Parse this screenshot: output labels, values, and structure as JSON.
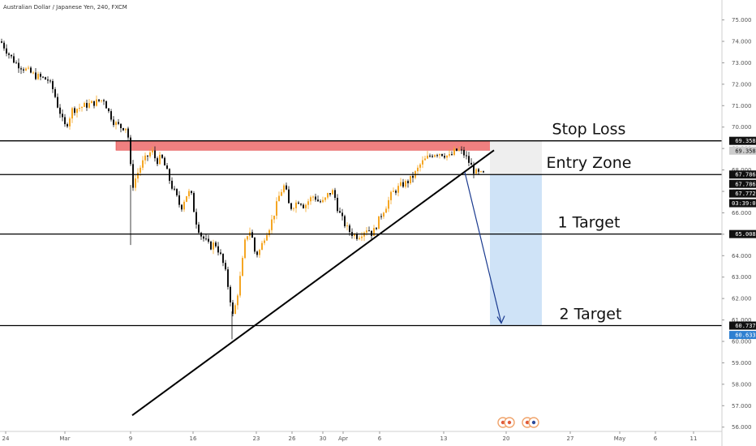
{
  "header": {
    "symbol_title": "Australian Dollar / Japanese Yen, 240, FXCM"
  },
  "colors": {
    "bull": "#f5a623",
    "bear": "#111111",
    "stop_zone": "#f08080",
    "stop_zone_border": "#e03b3b",
    "target_zone": "#cfe3f7",
    "risk_zone": "#eeeeee",
    "arrow": "#1a3a8f",
    "tag_dark": "#111111",
    "tag_blue": "#2f80d1",
    "tag_gray": "#cccccc"
  },
  "chart_data": {
    "type": "candlestick",
    "ylim": [
      55.8,
      75.4
    ],
    "yticks": [
      "75.000",
      "74.000",
      "73.000",
      "72.000",
      "71.000",
      "70.000",
      "69.000",
      "68.000",
      "67.000",
      "66.000",
      "65.000",
      "64.000",
      "63.000",
      "62.000",
      "61.000",
      "60.000",
      "59.000",
      "58.000",
      "57.000",
      "56.000"
    ],
    "xticks": [
      "24",
      "Mar",
      "9",
      "16",
      "23",
      "26",
      "30",
      "Apr",
      "6",
      "13",
      "20",
      "27",
      "May",
      "6",
      "11"
    ],
    "levels": [
      {
        "label": "Stop Loss",
        "price": 69.358
      },
      {
        "label": "Entry Zone",
        "price": 67.786
      },
      {
        "label": "1 Target",
        "price": 65.008
      },
      {
        "label": "2 Target",
        "price": 60.737
      }
    ],
    "price_tags": [
      {
        "text": "69.358",
        "price": 69.358,
        "style": "dark"
      },
      {
        "text": "69.358",
        "price": 68.9,
        "style": "gray"
      },
      {
        "text": "67.786",
        "price": 67.786,
        "style": "dark"
      },
      {
        "text": "67.786",
        "price": 67.35,
        "style": "dark"
      },
      {
        "text": "67.772",
        "price": 66.9,
        "style": "dark"
      },
      {
        "text": "03:39:08",
        "price": 66.45,
        "style": "dark"
      },
      {
        "text": "65.008",
        "price": 65.008,
        "style": "dark"
      },
      {
        "text": "60.737",
        "price": 60.737,
        "style": "dark"
      },
      {
        "text": "60.633",
        "price": 60.3,
        "style": "blue"
      }
    ],
    "stop_zone": {
      "top": 69.358,
      "bottom": 68.92
    },
    "trendline": {
      "from": 56.55,
      "to": 68.92
    },
    "path": [
      [
        0,
        74.0
      ],
      [
        10,
        73.4
      ],
      [
        18,
        73.0
      ],
      [
        26,
        72.8
      ],
      [
        34,
        72.6
      ],
      [
        42,
        72.4
      ],
      [
        50,
        72.3
      ],
      [
        58,
        72.2
      ],
      [
        65,
        71.7
      ],
      [
        70,
        71.0
      ],
      [
        74,
        70.6
      ],
      [
        78,
        70.0
      ],
      [
        82,
        70.2
      ],
      [
        88,
        70.8
      ],
      [
        96,
        70.9
      ],
      [
        104,
        71.0
      ],
      [
        112,
        71.1
      ],
      [
        120,
        71.2
      ],
      [
        127,
        71.3
      ],
      [
        133,
        70.7
      ],
      [
        140,
        70.2
      ],
      [
        148,
        70.0
      ],
      [
        156,
        70.0
      ],
      [
        162,
        67.2
      ],
      [
        168,
        67.8
      ],
      [
        174,
        68.3
      ],
      [
        180,
        68.6
      ],
      [
        186,
        68.9
      ],
      [
        192,
        68.4
      ],
      [
        198,
        68.6
      ],
      [
        204,
        68.0
      ],
      [
        210,
        67.3
      ],
      [
        216,
        66.8
      ],
      [
        222,
        66.2
      ],
      [
        228,
        66.8
      ],
      [
        234,
        67.0
      ],
      [
        240,
        65.7
      ],
      [
        246,
        65.0
      ],
      [
        252,
        64.7
      ],
      [
        258,
        64.4
      ],
      [
        264,
        64.6
      ],
      [
        270,
        64.1
      ],
      [
        276,
        63.4
      ],
      [
        282,
        62.2
      ],
      [
        286,
        61.2
      ],
      [
        290,
        61.8
      ],
      [
        296,
        63.2
      ],
      [
        302,
        64.9
      ],
      [
        308,
        65.2
      ],
      [
        314,
        64.0
      ],
      [
        320,
        64.3
      ],
      [
        326,
        65.0
      ],
      [
        332,
        65.4
      ],
      [
        338,
        66.1
      ],
      [
        344,
        66.9
      ],
      [
        350,
        67.3
      ],
      [
        356,
        66.2
      ],
      [
        362,
        66.4
      ],
      [
        368,
        66.6
      ],
      [
        374,
        66.3
      ],
      [
        380,
        66.6
      ],
      [
        386,
        66.8
      ],
      [
        392,
        66.5
      ],
      [
        398,
        66.5
      ],
      [
        404,
        66.9
      ],
      [
        410,
        67.0
      ],
      [
        416,
        66.1
      ],
      [
        422,
        65.6
      ],
      [
        428,
        65.2
      ],
      [
        434,
        65.0
      ],
      [
        440,
        64.9
      ],
      [
        446,
        65.1
      ],
      [
        452,
        65.3
      ],
      [
        458,
        65.0
      ],
      [
        464,
        65.5
      ],
      [
        470,
        66.0
      ],
      [
        476,
        66.4
      ],
      [
        482,
        66.9
      ],
      [
        488,
        67.1
      ],
      [
        494,
        67.3
      ],
      [
        500,
        67.4
      ],
      [
        506,
        67.6
      ],
      [
        512,
        67.9
      ],
      [
        518,
        68.3
      ],
      [
        524,
        68.5
      ],
      [
        530,
        68.7
      ],
      [
        536,
        68.8
      ],
      [
        542,
        68.8
      ],
      [
        548,
        68.7
      ],
      [
        554,
        68.6
      ],
      [
        560,
        68.9
      ],
      [
        566,
        68.9
      ],
      [
        572,
        68.7
      ],
      [
        578,
        68.3
      ],
      [
        584,
        67.9
      ],
      [
        590,
        67.8
      ],
      [
        596,
        67.78
      ]
    ],
    "event_icons": [
      {
        "name": "flag-event-1",
        "x": 620
      },
      {
        "name": "flag-event-2",
        "x": 628
      },
      {
        "name": "flag-event-3",
        "x": 650
      },
      {
        "name": "au-flag-event",
        "x": 658
      }
    ]
  }
}
